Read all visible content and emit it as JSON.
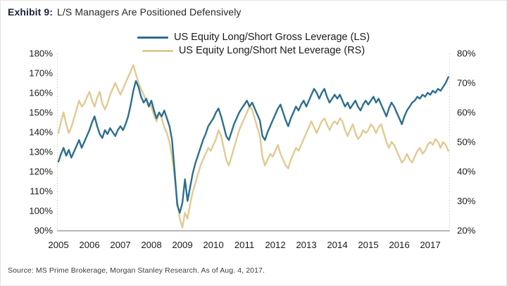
{
  "title": {
    "label": "Exhibit 9:",
    "text": "L/S Managers Are Positioned Defensively"
  },
  "source": "Source: MS Prime Brokerage, Morgan Stanley Research. As of Aug. 4, 2017.",
  "legend": [
    {
      "label": "US Equity Long/Short Gross Leverage (LS)"
    },
    {
      "label": "US Equity Long/Short Net Leverage (RS)"
    }
  ],
  "colors": {
    "gross_line": "#2C6E8E",
    "net_line": "#E1CA92",
    "axis_line": "#8f8f8f",
    "side_axis_line": "#d9d9d9",
    "tick_text": "#1a1a1a"
  },
  "chart_data": {
    "type": "line",
    "title": "L/S Managers Are Positioned Defensively",
    "x_tick_labels": [
      "2005",
      "2006",
      "2007",
      "2008",
      "2009",
      "2010",
      "2011",
      "2012",
      "2013",
      "2014",
      "2015",
      "2016",
      "2017"
    ],
    "x_start_year": 2005.0,
    "x_points_per_year": 12,
    "left_axis": {
      "min": 90,
      "max": 180,
      "tick_step": 10,
      "ticks": [
        "180%",
        "170%",
        "160%",
        "150%",
        "140%",
        "130%",
        "120%",
        "110%",
        "100%",
        "90%"
      ]
    },
    "right_axis": {
      "min": 20,
      "max": 80,
      "tick_step": 10,
      "ticks": [
        "80%",
        "70%",
        "60%",
        "50%",
        "40%",
        "30%",
        "20%"
      ]
    },
    "grid": false,
    "legend_position": "top-center",
    "series": [
      {
        "name": "US Equity Long/Short Gross Leverage (LS)",
        "axis": "left",
        "color": "#2C6E8E",
        "values": [
          125,
          129,
          132,
          128,
          131,
          127,
          130,
          133,
          136,
          132,
          135,
          138,
          141,
          145,
          148,
          143,
          139,
          137,
          141,
          139,
          142,
          140,
          138,
          141,
          143,
          141,
          144,
          148,
          154,
          161,
          166,
          163,
          158,
          155,
          157,
          153,
          156,
          151,
          147,
          150,
          148,
          151,
          147,
          143,
          136,
          120,
          103,
          99,
          104,
          116,
          105,
          112,
          119,
          124,
          128,
          132,
          136,
          139,
          143,
          145,
          147,
          150,
          152,
          148,
          143,
          138,
          136,
          140,
          144,
          147,
          150,
          152,
          154,
          156,
          153,
          155,
          152,
          149,
          146,
          138,
          136,
          140,
          143,
          146,
          149,
          152,
          154,
          150,
          146,
          143,
          147,
          150,
          153,
          151,
          154,
          156,
          153,
          156,
          159,
          162,
          160,
          157,
          160,
          162,
          158,
          155,
          157,
          159,
          157,
          159,
          156,
          153,
          155,
          152,
          154,
          156,
          153,
          151,
          154,
          156,
          154,
          156,
          158,
          155,
          157,
          154,
          151,
          148,
          152,
          155,
          153,
          150,
          147,
          144,
          148,
          151,
          153,
          155,
          156,
          158,
          157,
          159,
          158,
          160,
          159,
          161,
          160,
          162,
          161,
          163,
          165,
          168
        ]
      },
      {
        "name": "US Equity Long/Short Net Leverage (RS)",
        "axis": "right",
        "color": "#E1CA92",
        "values": [
          53,
          57,
          60,
          56,
          53,
          55,
          58,
          61,
          64,
          62,
          63,
          65,
          67,
          64,
          62,
          65,
          67,
          63,
          61,
          63,
          66,
          68,
          70,
          68,
          66,
          68,
          70,
          72,
          74,
          76,
          73,
          70,
          68,
          66,
          64,
          63,
          62,
          59,
          57,
          60,
          58,
          55,
          53,
          50,
          45,
          38,
          30,
          24,
          21,
          26,
          24,
          29,
          33,
          36,
          39,
          42,
          44,
          46,
          48,
          47,
          49,
          51,
          54,
          52,
          48,
          44,
          42,
          45,
          48,
          51,
          54,
          56,
          58,
          60,
          62,
          61,
          58,
          55,
          52,
          45,
          42,
          44,
          46,
          45,
          47,
          49,
          46,
          44,
          42,
          41,
          44,
          46,
          48,
          47,
          49,
          51,
          53,
          55,
          57,
          55,
          53,
          55,
          57,
          58,
          56,
          54,
          56,
          57,
          56,
          58,
          57,
          54,
          52,
          54,
          56,
          53,
          51,
          52,
          54,
          53,
          54,
          56,
          55,
          53,
          55,
          56,
          53,
          50,
          48,
          50,
          49,
          47,
          45,
          43,
          44,
          46,
          44,
          43,
          45,
          47,
          48,
          46,
          47,
          49,
          50,
          49,
          51,
          50,
          48,
          50,
          49,
          47
        ]
      }
    ]
  }
}
